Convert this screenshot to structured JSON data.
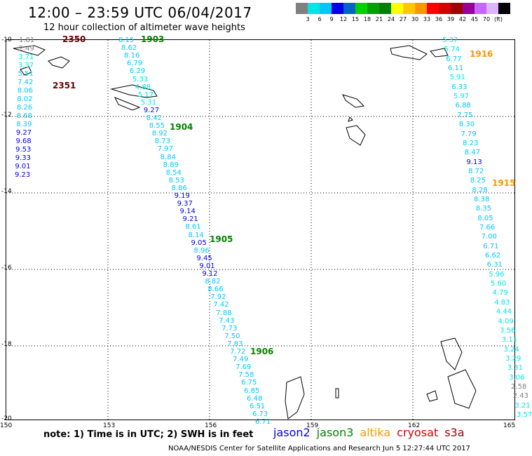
{
  "title": "12:00 – 23:59 UTC 06/04/2017",
  "subtitle": "12 hour collection of altimeter wave heights",
  "colorbar": {
    "colors": [
      "#808080",
      "#00e6e6",
      "#00c8ff",
      "#0000e6",
      "#0064c8",
      "#00d200",
      "#00a000",
      "#008200",
      "#ffff00",
      "#ffc800",
      "#ff9600",
      "#ff0000",
      "#d20000",
      "#a00000",
      "#960096",
      "#c864ff",
      "#dcb4ff",
      "#000000"
    ],
    "labels": [
      "3",
      "6",
      "9",
      "12",
      "15",
      "18",
      "21",
      "24",
      "27",
      "30",
      "33",
      "36",
      "39",
      "42",
      "45",
      "70",
      "(ft)"
    ]
  },
  "map": {
    "lon_ticks": [
      "150",
      "153",
      "156",
      "159",
      "162",
      "165"
    ],
    "lat_ticks": [
      "-10",
      "-12",
      "-14",
      "-16",
      "-18",
      "-20"
    ]
  },
  "passes": [
    {
      "label": "2350",
      "color": "#6b0000"
    },
    {
      "label": "2351",
      "color": "#6b0000"
    },
    {
      "label": "1903",
      "color": "#008200"
    },
    {
      "label": "1904",
      "color": "#008200"
    },
    {
      "label": "1905",
      "color": "#008200"
    },
    {
      "label": "1906",
      "color": "#008200"
    },
    {
      "label": "1916",
      "color": "#ff9600"
    },
    {
      "label": "1915",
      "color": "#ff9600"
    }
  ],
  "tracks": [
    {
      "name": "cryosat-west",
      "values": [
        "1.81",
        "2.49",
        "3.71",
        "3.37",
        "5.51",
        "7.42",
        "8.06",
        "8.02",
        "8.26",
        "8.68",
        "8.39",
        "9.27",
        "9.68",
        "9.53",
        "9.33",
        "9.01",
        "9.23"
      ]
    },
    {
      "name": "jason3",
      "values": [
        "8.15",
        "8.62",
        "8.16",
        "6.79",
        "6.29",
        "5.33",
        "4.88",
        "5.17",
        "5.31",
        "9.27",
        "8.42",
        "8.55",
        "8.92",
        "8.73",
        "7.97",
        "8.84",
        "8.89",
        "8.54",
        "8.53",
        "8.86",
        "9.19",
        "9.37",
        "9.14",
        "9.21",
        "8.61",
        "8.14",
        "9.05",
        "8.96",
        "9.45",
        "9.01",
        "9.12",
        "8.82",
        "8.66",
        "7.92",
        "7.42",
        "7.88",
        "7.43",
        "7.73",
        "7.50",
        "7.83",
        "7.72",
        "7.49",
        "7.69",
        "7.58",
        "6.75",
        "6.85",
        "6.48",
        "6.51",
        "6.73",
        "6.71"
      ]
    },
    {
      "name": "altika-east",
      "values": [
        "5.37",
        "5.74",
        "6.77",
        "6.11",
        "5.91",
        "6.33",
        "5.97",
        "6.88",
        "7.75",
        "8.30",
        "7.79",
        "8.23",
        "8.47",
        "9.13",
        "8.72",
        "8.25",
        "8.28",
        "8.38",
        "8.35",
        "8.05",
        "7.66",
        "7.00",
        "6.71",
        "6.62",
        "6.31",
        "5.96",
        "5.60",
        "4.79",
        "4.83",
        "4.44",
        "4.09",
        "3.56",
        "3.11",
        "3.24",
        "3.29",
        "3.31",
        "3.06",
        "2.58",
        "2.43",
        "3.21",
        "3.57"
      ]
    }
  ],
  "note": "note: 1) Time is in UTC; 2) SWH is in feet",
  "satellites": [
    {
      "name": "jason2",
      "color": "#0000e6"
    },
    {
      "name": "jason3",
      "color": "#008200"
    },
    {
      "name": "altika",
      "color": "#ff9600"
    },
    {
      "name": "cryosat",
      "color": "#d20000"
    },
    {
      "name": "s3a",
      "color": "#a00000"
    }
  ],
  "credit": "NOAA/NESDIS Center for Satellite Applications and Research   Jun  5 12:27:44 UTC 2017"
}
